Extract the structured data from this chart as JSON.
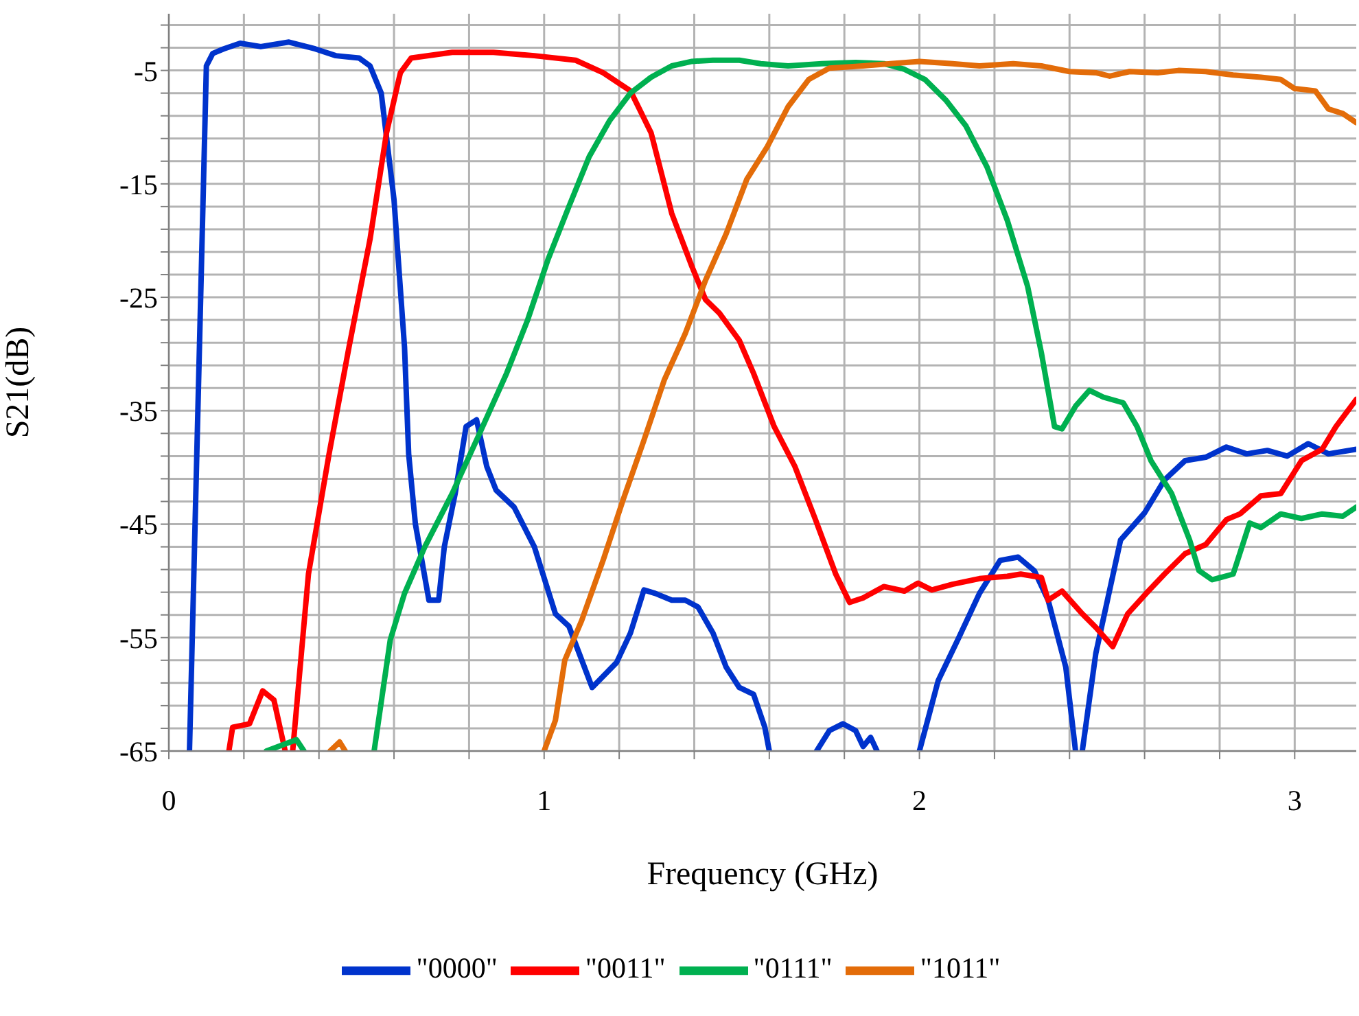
{
  "chart_data": {
    "type": "line",
    "xlabel": "Frequency (GHz)",
    "ylabel": "S21(dB)",
    "xlim": [
      0,
      3.164
    ],
    "ylim": [
      -65,
      0
    ],
    "xticks": [
      0,
      {
        "value": 0.2,
        "label": null
      },
      {
        "value": 0.4,
        "label": null
      },
      {
        "value": 0.6,
        "label": null
      },
      {
        "value": 0.8,
        "label": null
      },
      1,
      {
        "value": 1.2,
        "label": null
      },
      {
        "value": 1.4,
        "label": null
      },
      {
        "value": 1.6,
        "label": null
      },
      {
        "value": 1.8,
        "label": null
      },
      2,
      {
        "value": 2.2,
        "label": null
      },
      {
        "value": 2.4,
        "label": null
      },
      {
        "value": 2.6,
        "label": null
      },
      {
        "value": 2.8,
        "label": null
      },
      3
    ],
    "yticks": [
      -65,
      {
        "value": -63,
        "label": null
      },
      {
        "value": -61,
        "label": null
      },
      {
        "value": -59,
        "label": null
      },
      {
        "value": -57,
        "label": null
      },
      -55,
      {
        "value": -53,
        "label": null
      },
      {
        "value": -51,
        "label": null
      },
      {
        "value": -49,
        "label": null
      },
      {
        "value": -47,
        "label": null
      },
      -45,
      {
        "value": -43,
        "label": null
      },
      {
        "value": -41,
        "label": null
      },
      {
        "value": -39,
        "label": null
      },
      {
        "value": -37,
        "label": null
      },
      -35,
      {
        "value": -33,
        "label": null
      },
      {
        "value": -31,
        "label": null
      },
      {
        "value": -29,
        "label": null
      },
      {
        "value": -27,
        "label": null
      },
      -25,
      {
        "value": -23,
        "label": null
      },
      {
        "value": -21,
        "label": null
      },
      {
        "value": -19,
        "label": null
      },
      {
        "value": -17,
        "label": null
      },
      -15,
      {
        "value": -13,
        "label": null
      },
      {
        "value": -11,
        "label": null
      },
      {
        "value": -9,
        "label": null
      },
      {
        "value": -7,
        "label": null
      },
      -5,
      {
        "value": -3,
        "label": null
      },
      {
        "value": -1,
        "label": null
      }
    ],
    "grid": true,
    "legend": "bottom",
    "marker": "none",
    "line_style": "solid",
    "series": [
      {
        "name": "\"0000\"",
        "color": "#0033cc",
        "x": [
          0.055,
          0.1,
          0.117,
          0.146,
          0.19,
          0.245,
          0.32,
          0.39,
          0.445,
          0.507,
          0.536,
          0.566,
          0.6,
          0.628,
          0.639,
          0.657,
          0.693,
          0.719,
          0.734,
          0.763,
          0.792,
          0.82,
          0.847,
          0.872,
          0.92,
          0.974,
          1.03,
          1.066,
          1.128,
          1.193,
          1.23,
          1.266,
          1.296,
          1.34,
          1.376,
          1.41,
          1.45,
          1.485,
          1.52,
          1.558,
          1.588,
          1.6,
          1.66,
          1.726,
          1.76,
          1.796,
          1.83,
          1.85,
          1.87,
          1.887,
          1.94,
          2.0,
          2.05,
          2.105,
          2.16,
          2.215,
          2.263,
          2.306,
          2.343,
          2.39,
          2.416,
          2.425,
          2.434,
          2.47,
          2.536,
          2.6,
          2.653,
          2.708,
          2.763,
          2.818,
          2.872,
          2.927,
          2.98,
          3.036,
          3.09,
          3.164
        ],
        "values": [
          -65,
          -4.6,
          -3.5,
          -3.1,
          -2.6,
          -2.9,
          -2.5,
          -3.1,
          -3.7,
          -3.9,
          -4.6,
          -7,
          -16.4,
          -29.4,
          -38.8,
          -45,
          -51.7,
          -51.7,
          -47,
          -42.3,
          -36.4,
          -35.8,
          -39.9,
          -42,
          -43.5,
          -47,
          -52.9,
          -54,
          -59.4,
          -57.2,
          -54.6,
          -50.8,
          -51.1,
          -51.7,
          -51.7,
          -52.3,
          -54.6,
          -57.6,
          -59.4,
          -60,
          -62.9,
          -65,
          null,
          -65,
          -63.2,
          -62.6,
          -63.2,
          -64.6,
          -63.8,
          -65,
          null,
          -65,
          -58.8,
          -55,
          -51.1,
          -48.2,
          -47.9,
          -49.1,
          -51.7,
          -57.6,
          -65,
          null,
          -65,
          -56.4,
          -46.4,
          -44,
          -41.1,
          -39.4,
          -39.1,
          -38.2,
          -38.8,
          -38.5,
          -39,
          -37.9,
          -38.8,
          -38.4
        ]
      },
      {
        "name": "\"0011\"",
        "color": "#ff0000",
        "x": [
          0.16,
          0.17,
          0.215,
          0.25,
          0.28,
          0.31,
          0.32,
          0.33,
          0.372,
          0.427,
          0.48,
          0.536,
          0.58,
          0.617,
          0.646,
          0.755,
          0.865,
          0.974,
          1.084,
          1.157,
          1.23,
          1.285,
          1.34,
          1.394,
          1.43,
          1.467,
          1.52,
          1.558,
          1.613,
          1.668,
          1.723,
          1.777,
          1.814,
          1.85,
          1.905,
          1.96,
          1.996,
          2.033,
          2.088,
          2.16,
          2.234,
          2.27,
          2.325,
          2.343,
          2.38,
          2.434,
          2.47,
          2.515,
          2.555,
          2.61,
          2.653,
          2.708,
          2.763,
          2.818,
          2.854,
          2.91,
          2.963,
          3.018,
          3.073,
          3.11,
          3.164
        ],
        "values": [
          -65,
          -62.9,
          -62.6,
          -59.7,
          -60.5,
          -65,
          null,
          -65,
          -49.4,
          -38.8,
          -29.4,
          -19.9,
          -10.5,
          -5.2,
          -3.9,
          -3.4,
          -3.4,
          -3.7,
          -4.1,
          -5.2,
          -6.8,
          -10.5,
          -17.6,
          -22.3,
          -25.2,
          -26.4,
          -28.8,
          -31.7,
          -36.4,
          -39.9,
          -44.6,
          -49.4,
          -51.9,
          -51.5,
          -50.5,
          -50.9,
          -50.2,
          -50.8,
          -50.3,
          -49.8,
          -49.6,
          -49.4,
          -49.7,
          -51.7,
          -50.9,
          -52.9,
          -54.1,
          -55.8,
          -52.9,
          -50.9,
          -49.4,
          -47.6,
          -46.8,
          -44.6,
          -44.1,
          -42.5,
          -42.3,
          -39.4,
          -38.4,
          -36.4,
          -34
        ]
      },
      {
        "name": "\"0111\"",
        "color": "#00b050",
        "x": [
          0.26,
          0.34,
          0.36,
          0.45,
          0.547,
          0.59,
          0.628,
          0.682,
          0.755,
          0.828,
          0.9,
          0.956,
          1.01,
          1.066,
          1.12,
          1.175,
          1.23,
          1.285,
          1.34,
          1.394,
          1.45,
          1.52,
          1.577,
          1.65,
          1.74,
          1.83,
          1.905,
          1.96,
          2.015,
          2.07,
          2.124,
          2.18,
          2.234,
          2.288,
          2.325,
          2.36,
          2.38,
          2.416,
          2.453,
          2.49,
          2.543,
          2.58,
          2.617,
          2.672,
          2.72,
          2.745,
          2.78,
          2.836,
          2.88,
          2.91,
          2.963,
          3.018,
          3.073,
          3.128,
          3.164
        ],
        "values": [
          -65,
          -64,
          -65,
          null,
          -65,
          -55.2,
          -51.1,
          -47,
          -42.3,
          -37,
          -31.7,
          -27,
          -21.7,
          -17,
          -12.6,
          -9.4,
          -7,
          -5.6,
          -4.6,
          -4.2,
          -4.1,
          -4.1,
          -4.4,
          -4.6,
          -4.4,
          -4.3,
          -4.4,
          -4.9,
          -5.8,
          -7.6,
          -9.9,
          -13.5,
          -18.2,
          -24,
          -29.9,
          -36.4,
          -36.6,
          -34.6,
          -33.2,
          -33.8,
          -34.3,
          -36.4,
          -39.4,
          -42.3,
          -46.4,
          -49.1,
          -49.9,
          -49.4,
          -44.9,
          -45.3,
          -44.1,
          -44.5,
          -44.1,
          -44.3,
          -43.5
        ]
      },
      {
        "name": "\"1011\"",
        "color": "#e36c09",
        "x": [
          0.43,
          0.455,
          0.47,
          0.7,
          1.0,
          1.03,
          1.055,
          1.1,
          1.157,
          1.21,
          1.266,
          1.32,
          1.376,
          1.43,
          1.485,
          1.54,
          1.595,
          1.65,
          1.705,
          1.76,
          1.85,
          1.923,
          2.0,
          2.088,
          2.16,
          2.25,
          2.325,
          2.4,
          2.47,
          2.507,
          2.56,
          2.635,
          2.69,
          2.763,
          2.836,
          2.91,
          2.963,
          3.0,
          3.055,
          3.09,
          3.128,
          3.164
        ],
        "values": [
          -65,
          -64.2,
          -65,
          null,
          -65,
          -62.3,
          -57,
          -53.5,
          -48.2,
          -42.9,
          -37.6,
          -32.3,
          -28.2,
          -23.5,
          -19.4,
          -14.6,
          -11.7,
          -8.2,
          -5.8,
          -4.8,
          -4.6,
          -4.4,
          -4.2,
          -4.4,
          -4.6,
          -4.4,
          -4.6,
          -5.1,
          -5.2,
          -5.5,
          -5.1,
          -5.2,
          -5,
          -5.1,
          -5.4,
          -5.6,
          -5.8,
          -6.6,
          -6.8,
          -8.4,
          -8.8,
          -9.6
        ]
      }
    ]
  }
}
